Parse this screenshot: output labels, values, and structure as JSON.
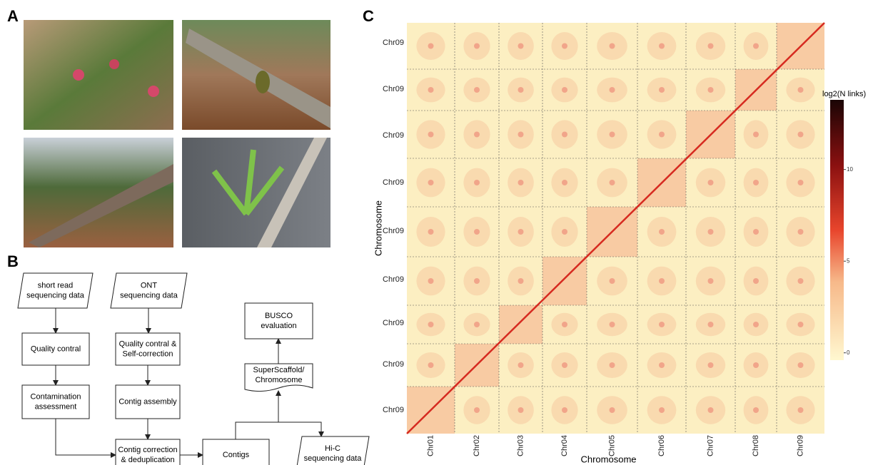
{
  "panels": {
    "a": "A",
    "b": "B",
    "c": "C"
  },
  "flowchart": {
    "nodes": [
      {
        "lines": [
          "short read",
          "sequencing data"
        ]
      },
      {
        "lines": [
          "ONT",
          "sequencing data"
        ]
      },
      {
        "lines": [
          "Quality contral"
        ]
      },
      {
        "lines": [
          "Quality contral &",
          "Self-correction"
        ]
      },
      {
        "lines": [
          "Contamination",
          "assessment"
        ]
      },
      {
        "lines": [
          "Contig assembly"
        ]
      },
      {
        "lines": [
          "Contig correction",
          "& deduplication"
        ]
      },
      {
        "lines": [
          "Contigs"
        ]
      },
      {
        "lines": [
          "Hi-C",
          "sequencing data"
        ]
      },
      {
        "lines": [
          "SuperScaffold/",
          "Chromosome"
        ]
      },
      {
        "lines": [
          "BUSCO",
          "evaluation"
        ]
      }
    ]
  },
  "heatmap": {
    "y_labels": [
      "Chr09",
      "Chr09",
      "Chr09",
      "Chr09",
      "Chr09",
      "Chr09",
      "Chr09",
      "Chr09",
      "Chr09"
    ],
    "x_labels": [
      "Chr01",
      "Chr02",
      "Chr03",
      "Chr04",
      "Chr05",
      "Chr06",
      "Chr07",
      "Chr08",
      "Chr09"
    ],
    "x_axis_label": "Chromosome",
    "y_axis_label": "Chromosome",
    "colorbar": {
      "title": "log2(N links)",
      "lim": [
        -0.4,
        13.8
      ],
      "ticks": [
        0,
        5,
        10
      ]
    }
  }
}
